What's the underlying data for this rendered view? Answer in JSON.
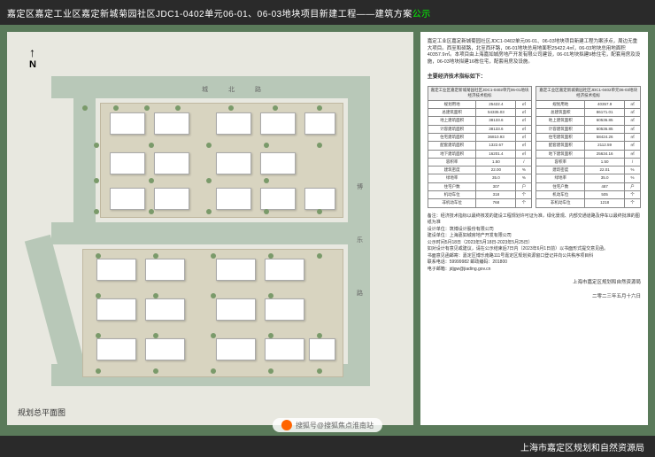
{
  "header": {
    "prefix": "嘉定区嘉定工业区嘉定新城菊园社区JDC1-0402单元06-01、06-03地块项目新建工程——建筑方案",
    "highlight": "公示"
  },
  "plan": {
    "label": "规划总平面图",
    "north": "N",
    "road1": "城",
    "road2": "北",
    "road3": "路",
    "road4": "博",
    "road5": "乐",
    "road6": "路"
  },
  "right": {
    "description": "嘉定工业区嘉定新城菊园社区JDC1-0402单元06-01、06-03地块项目新建工程为案涉点，周边无重大项目。西至和硕路，北至西环路，06-01地块总用地面积25422.4㎡，06-03地块总用地面积40357.9㎡。本项目由上海嘉如城房地产开发有限公司建设，06-01地块拟建9栋住宅，配套用房及设施，06-03地块拟建16栋住宅，配套用房及设施。",
    "subtitle": "主要经济技术指标如下：",
    "table1": {
      "title": "嘉定工业区嘉定新城菊园社区JDC1-0402单元06-01地块经济技术指标",
      "rows": [
        [
          "规划用地",
          "25422.4",
          "㎡"
        ],
        [
          "总建筑面积",
          "54335.03",
          "㎡"
        ],
        [
          "地上建筑面积",
          "38133.6",
          "㎡"
        ],
        [
          "计容建筑面积",
          "38133.6",
          "㎡"
        ],
        [
          "住宅建筑面积",
          "36810.93",
          "㎡"
        ],
        [
          "配套建筑面积",
          "1322.67",
          "㎡"
        ],
        [
          "地下建筑面积",
          "16201.4",
          "㎡"
        ],
        [
          "容积率",
          "1.50",
          "/"
        ],
        [
          "建筑密度",
          "22.00",
          "%"
        ],
        [
          "绿地率",
          "35.0",
          "%"
        ],
        [
          "住宅户数",
          "307",
          "户"
        ],
        [
          "机动车位",
          "318",
          "个"
        ],
        [
          "非机动车位",
          "768",
          "个"
        ]
      ]
    },
    "table2": {
      "title": "嘉定工业区嘉定新城菊园社区JDC1-0402单元06-03地块经济技术指标",
      "rows": [
        [
          "规划用地",
          "40357.9",
          "㎡"
        ],
        [
          "总建筑面积",
          "86171.01",
          "㎡"
        ],
        [
          "地上建筑面积",
          "60536.85",
          "㎡"
        ],
        [
          "计容建筑面积",
          "60536.85",
          "㎡"
        ],
        [
          "住宅建筑面积",
          "58424.26",
          "㎡"
        ],
        [
          "配套建筑面积",
          "2112.59",
          "㎡"
        ],
        [
          "地下建筑面积",
          "25634.16",
          "㎡"
        ],
        [
          "容积率",
          "1.50",
          "/"
        ],
        [
          "建筑密度",
          "22.01",
          "%"
        ],
        [
          "绿地率",
          "35.0",
          "%"
        ],
        [
          "住宅户数",
          "487",
          "户"
        ],
        [
          "机动车位",
          "505",
          "个"
        ],
        [
          "非机动车位",
          "1218",
          "个"
        ]
      ]
    },
    "notes": "备注：经济技术指标以最终核发的建设工程规划许可证为准，绿化景观、内部交通道路及停车以最终批准的图纸为准\n设计单位：筑博设计股份有限公司\n建设单位：上海嘉如城房地产开发有限公司\n公示时间5月18日（2023年5月18日-2023年5月25日）\n如对设计有意见或建议，请在公示结束后7日内（2023年6月1日前）以书面形式提交意见函。\n书面意见函邮寄：嘉定区博乐南路111号嘉定区规划资源窗口登记并向公共秩序项目科\n联系电话：59999982  邮政编码：201800\n电子邮箱：jdjgw@jiading.gov.cn",
    "signature1": "上海市嘉定区规划和自然资源局",
    "signature2": "二零二三年五月十六日"
  },
  "footer": {
    "text": "上海市嘉定区规划和自然资源局"
  },
  "watermark": {
    "text": "搜狐号@搜狐焦点淮南站"
  },
  "colors": {
    "bg": "#5a7a5a",
    "header": "#2a2a2a",
    "plot": "#d8d4c0",
    "road": "#b8c8b8",
    "building": "#ffffff",
    "tree": "#7a9a6a"
  }
}
